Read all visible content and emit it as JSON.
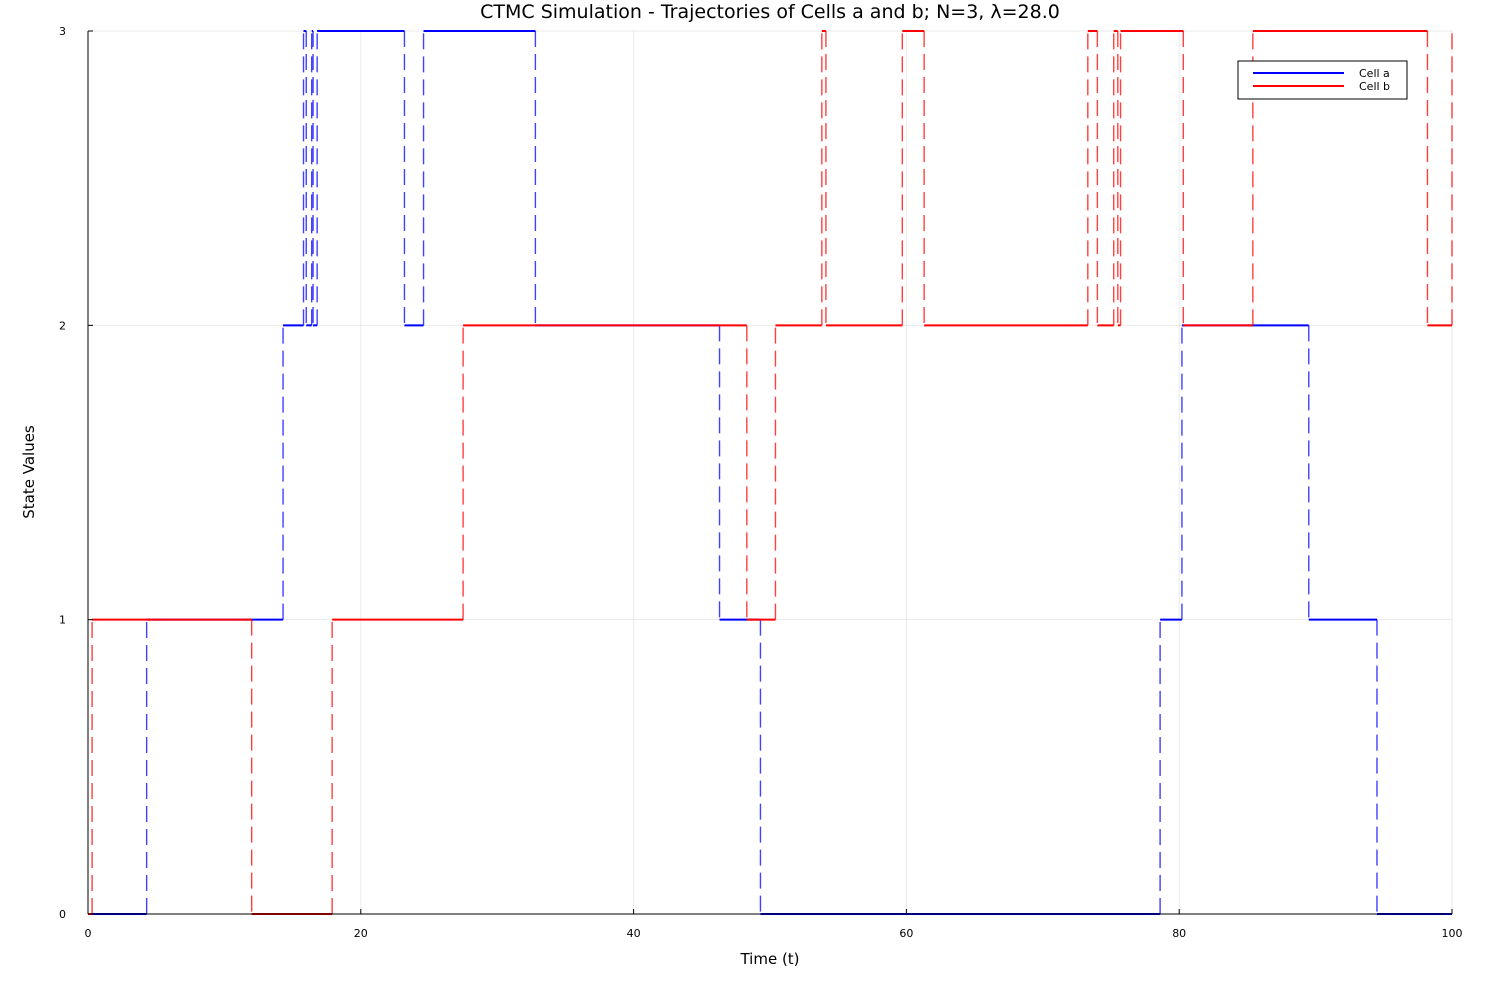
{
  "chart_data": {
    "type": "line",
    "title": "CTMC Simulation - Trajectories of Cells a and b; N=3, λ=28.0",
    "xlabel": "Time (t)",
    "ylabel": "State Values",
    "xlim": [
      0,
      100
    ],
    "ylim": [
      0,
      3
    ],
    "xticks": [
      0,
      20,
      40,
      60,
      80,
      100
    ],
    "yticks": [
      0,
      1,
      2,
      3
    ],
    "grid": true,
    "legend_position": "top-right",
    "step": true,
    "jump_style": "dashed",
    "series": [
      {
        "name": "Cell a",
        "color": "#0000ff",
        "x": [
          0,
          4.3,
          14.3,
          15.8,
          16.0,
          16.4,
          16.5,
          16.8,
          23.2,
          24.6,
          32.8,
          46.3,
          49.3,
          78.6,
          80.2,
          89.5,
          94.5,
          100
        ],
        "y": [
          0,
          1,
          2,
          3,
          2,
          3,
          2,
          3,
          2,
          3,
          2,
          1,
          0,
          1,
          2,
          1,
          0,
          0
        ]
      },
      {
        "name": "Cell b",
        "color": "#ff0000",
        "x": [
          0,
          0.3,
          12.0,
          17.9,
          27.5,
          48.3,
          50.4,
          53.8,
          54.1,
          59.7,
          61.3,
          73.3,
          74.0,
          75.2,
          75.5,
          75.7,
          80.3,
          85.4,
          98.2,
          100
        ],
        "y": [
          0,
          1,
          0,
          1,
          2,
          1,
          2,
          3,
          2,
          3,
          2,
          3,
          2,
          3,
          2,
          3,
          2,
          3,
          2,
          3
        ]
      }
    ]
  }
}
